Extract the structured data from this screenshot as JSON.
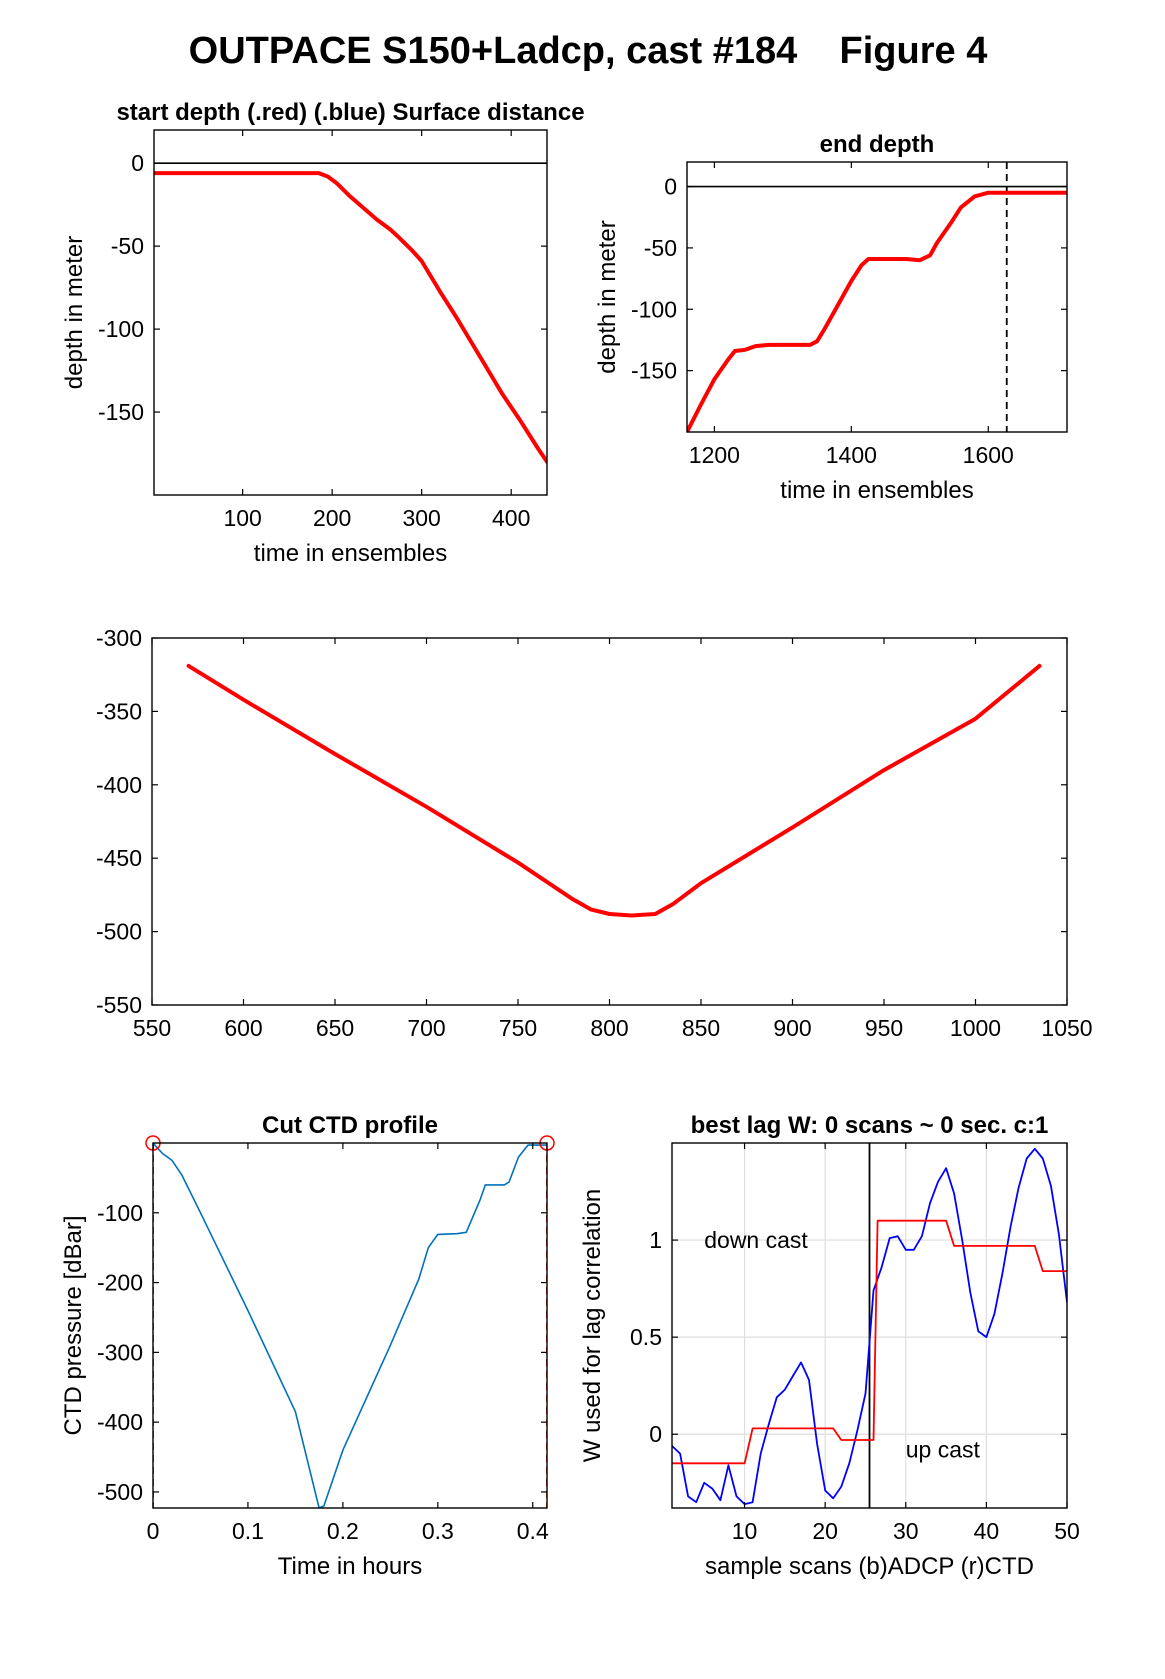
{
  "figure": {
    "title": "OUTPACE S150+Ladcp, cast #184    Figure 4"
  },
  "chart_data": [
    {
      "id": "start",
      "type": "line",
      "title": "start depth (.red) (.blue) Surface distance",
      "xlabel": "time in ensembles",
      "ylabel": "depth in meter",
      "xlim": [
        1,
        440
      ],
      "ylim": [
        -200,
        20
      ],
      "xticks": [
        100,
        200,
        300,
        400
      ],
      "yticks": [
        0,
        -50,
        -100,
        -150
      ],
      "grid": false,
      "hlines": [
        {
          "y": 0,
          "color": "#000000",
          "style": "solid"
        }
      ],
      "vlines": [],
      "series": [
        {
          "color": "#ff0000",
          "width": 4,
          "points": [
            [
              1,
              -6
            ],
            [
              50,
              -6
            ],
            [
              100,
              -6
            ],
            [
              150,
              -6
            ],
            [
              185,
              -6
            ],
            [
              195,
              -8
            ],
            [
              205,
              -12
            ],
            [
              220,
              -20
            ],
            [
              235,
              -27
            ],
            [
              250,
              -34
            ],
            [
              265,
              -40
            ],
            [
              275,
              -45
            ],
            [
              290,
              -53
            ],
            [
              300,
              -59
            ],
            [
              320,
              -77
            ],
            [
              340,
              -94
            ],
            [
              360,
              -112
            ],
            [
              380,
              -130
            ],
            [
              390,
              -139
            ],
            [
              410,
              -155
            ],
            [
              430,
              -172
            ],
            [
              440,
              -180
            ]
          ]
        }
      ]
    },
    {
      "id": "end",
      "type": "line",
      "title": "end depth",
      "xlabel": "time in ensembles",
      "ylabel": "depth in meter",
      "xlim": [
        1160,
        1715
      ],
      "ylim": [
        -200,
        20
      ],
      "xticks": [
        1200,
        1400,
        1600
      ],
      "yticks": [
        0,
        -50,
        -100,
        -150
      ],
      "grid": false,
      "hlines": [
        {
          "y": 0,
          "color": "#000000",
          "style": "solid"
        }
      ],
      "vlines": [
        {
          "x": 1627,
          "color": "#000000",
          "style": "dashed"
        }
      ],
      "series": [
        {
          "color": "#ff0000",
          "width": 4,
          "points": [
            [
              1160,
              -200
            ],
            [
              1180,
              -178
            ],
            [
              1200,
              -157
            ],
            [
              1220,
              -141
            ],
            [
              1230,
              -134
            ],
            [
              1245,
              -133
            ],
            [
              1260,
              -130
            ],
            [
              1280,
              -129
            ],
            [
              1320,
              -129
            ],
            [
              1340,
              -129
            ],
            [
              1350,
              -126
            ],
            [
              1360,
              -117
            ],
            [
              1380,
              -97
            ],
            [
              1400,
              -77
            ],
            [
              1415,
              -64
            ],
            [
              1425,
              -59
            ],
            [
              1450,
              -59
            ],
            [
              1480,
              -59
            ],
            [
              1500,
              -60
            ],
            [
              1515,
              -56
            ],
            [
              1525,
              -46
            ],
            [
              1545,
              -30
            ],
            [
              1560,
              -17
            ],
            [
              1580,
              -8
            ],
            [
              1600,
              -5
            ],
            [
              1650,
              -5
            ],
            [
              1715,
              -5
            ]
          ]
        }
      ]
    },
    {
      "id": "middle",
      "type": "line",
      "title": "",
      "xlabel": "",
      "ylabel": "",
      "xlim": [
        550,
        1050
      ],
      "ylim": [
        -550,
        -300
      ],
      "xticks": [
        550,
        600,
        650,
        700,
        750,
        800,
        850,
        900,
        950,
        1000,
        1050
      ],
      "yticks": [
        -300,
        -350,
        -400,
        -450,
        -500,
        -550
      ],
      "grid": false,
      "hlines": [],
      "vlines": [],
      "series": [
        {
          "color": "#ff0000",
          "width": 4,
          "points": [
            [
              570,
              -319
            ],
            [
              600,
              -342
            ],
            [
              650,
              -379
            ],
            [
              700,
              -415
            ],
            [
              750,
              -453
            ],
            [
              780,
              -478
            ],
            [
              790,
              -485
            ],
            [
              800,
              -488
            ],
            [
              812,
              -489
            ],
            [
              825,
              -488
            ],
            [
              835,
              -481
            ],
            [
              850,
              -467
            ],
            [
              900,
              -429
            ],
            [
              950,
              -390
            ],
            [
              1000,
              -355
            ],
            [
              1035,
              -319
            ]
          ]
        }
      ]
    },
    {
      "id": "cut",
      "type": "line",
      "title": "Cut CTD profile",
      "xlabel": "Time in hours",
      "ylabel": "CTD pressure [dBar]",
      "xlim": [
        0,
        0.415
      ],
      "ylim": [
        -523,
        0
      ],
      "xticks": [
        0,
        0.1,
        0.2,
        0.3,
        0.4
      ],
      "yticks": [
        -100,
        -200,
        -300,
        -400,
        -500
      ],
      "grid": false,
      "hlines": [],
      "vlines": [
        {
          "x": 0,
          "color": "#ff0000",
          "style": "dashed"
        },
        {
          "x": 0.415,
          "color": "#ff0000",
          "style": "dashed"
        }
      ],
      "markers": [
        {
          "x": 0,
          "y": 0,
          "color": "#ff0000"
        },
        {
          "x": 0.415,
          "y": 0,
          "color": "#ff0000"
        }
      ],
      "series": [
        {
          "color": "#0072bd",
          "width": 1.6,
          "points": [
            [
              0,
              0
            ],
            [
              0.01,
              -15
            ],
            [
              0.02,
              -25
            ],
            [
              0.03,
              -45
            ],
            [
              0.05,
              -100
            ],
            [
              0.1,
              -240
            ],
            [
              0.15,
              -385
            ],
            [
              0.175,
              -523
            ],
            [
              0.18,
              -520
            ],
            [
              0.2,
              -440
            ],
            [
              0.25,
              -290
            ],
            [
              0.28,
              -195
            ],
            [
              0.29,
              -150
            ],
            [
              0.3,
              -131
            ],
            [
              0.32,
              -130
            ],
            [
              0.33,
              -128
            ],
            [
              0.345,
              -80
            ],
            [
              0.35,
              -60
            ],
            [
              0.37,
              -60
            ],
            [
              0.375,
              -56
            ],
            [
              0.385,
              -20
            ],
            [
              0.395,
              -3
            ],
            [
              0.415,
              -3
            ]
          ]
        }
      ]
    },
    {
      "id": "lag",
      "type": "line",
      "title": "best lag W: 0 scans ~ 0 sec.  c:1",
      "xlabel": "sample scans (b)ADCP (r)CTD",
      "ylabel": "W used for lag correlation",
      "xlim": [
        1,
        50
      ],
      "ylim": [
        -0.38,
        1.5
      ],
      "xticks": [
        10,
        20,
        30,
        40,
        50
      ],
      "yticks": [
        0,
        0.5,
        1
      ],
      "grid": true,
      "hlines": [],
      "vlines": [
        {
          "x": 25.5,
          "color": "#000000",
          "style": "solid"
        }
      ],
      "annotations": [
        {
          "text": "down cast",
          "x": 5,
          "y": 0.96
        },
        {
          "text": "up cast",
          "x": 30,
          "y": -0.12
        }
      ],
      "series": [
        {
          "color": "#0000ff",
          "width": 1.8,
          "points": [
            [
              1,
              -0.06
            ],
            [
              2,
              -0.1
            ],
            [
              3,
              -0.32
            ],
            [
              4,
              -0.35
            ],
            [
              5,
              -0.25
            ],
            [
              6,
              -0.28
            ],
            [
              7,
              -0.34
            ],
            [
              8,
              -0.16
            ],
            [
              9,
              -0.32
            ],
            [
              10,
              -0.36
            ],
            [
              11,
              -0.35
            ],
            [
              12,
              -0.1
            ],
            [
              13,
              0.05
            ],
            [
              14,
              0.19
            ],
            [
              15,
              0.23
            ],
            [
              16,
              0.3
            ],
            [
              17,
              0.37
            ],
            [
              18,
              0.28
            ],
            [
              19,
              -0.05
            ],
            [
              20,
              -0.29
            ],
            [
              21,
              -0.33
            ],
            [
              22,
              -0.27
            ],
            [
              23,
              -0.15
            ],
            [
              24,
              0.02
            ],
            [
              25,
              0.21
            ],
            [
              26,
              0.74
            ],
            [
              27,
              0.86
            ],
            [
              28,
              1.01
            ],
            [
              29,
              1.02
            ],
            [
              30,
              0.95
            ],
            [
              31,
              0.95
            ],
            [
              32,
              1.02
            ],
            [
              33,
              1.19
            ],
            [
              34,
              1.3
            ],
            [
              35,
              1.37
            ],
            [
              36,
              1.24
            ],
            [
              37,
              1.0
            ],
            [
              38,
              0.73
            ],
            [
              39,
              0.53
            ],
            [
              40,
              0.5
            ],
            [
              41,
              0.62
            ],
            [
              42,
              0.83
            ],
            [
              43,
              1.07
            ],
            [
              44,
              1.27
            ],
            [
              45,
              1.42
            ],
            [
              46,
              1.47
            ],
            [
              47,
              1.42
            ],
            [
              48,
              1.28
            ],
            [
              49,
              1.03
            ],
            [
              50,
              0.68
            ]
          ]
        },
        {
          "color": "#ff0000",
          "width": 1.8,
          "points": [
            [
              1,
              -0.15
            ],
            [
              10,
              -0.15
            ],
            [
              11,
              0.03
            ],
            [
              21,
              0.03
            ],
            [
              22,
              -0.03
            ],
            [
              26,
              -0.03
            ],
            [
              26.5,
              1.1
            ],
            [
              35,
              1.1
            ],
            [
              36,
              0.97
            ],
            [
              46,
              0.97
            ],
            [
              47,
              0.84
            ],
            [
              50,
              0.84
            ]
          ]
        }
      ]
    }
  ]
}
